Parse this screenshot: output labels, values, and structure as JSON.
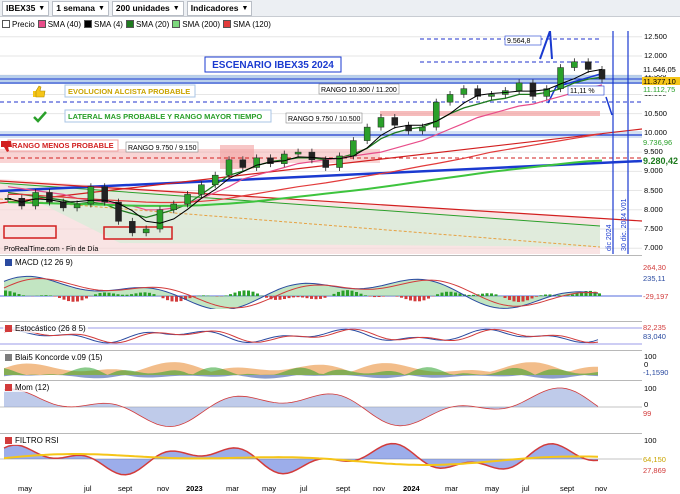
{
  "toolbar": {
    "symbol": "IBEX35",
    "period": "1 semana",
    "units": "200 unidades",
    "indicators": "Indicadores"
  },
  "legend": [
    {
      "label": "Precio",
      "color": "#ffffff"
    },
    {
      "label": "SMA (40)",
      "color": "#e84d8a"
    },
    {
      "label": "SMA (4)",
      "color": "#000000"
    },
    {
      "label": "SMA (20)",
      "color": "#1e7a1e"
    },
    {
      "label": "SMA (200)",
      "color": "#7dd87d"
    },
    {
      "label": "SMA (120)",
      "color": "#e23b3b"
    }
  ],
  "annotations": {
    "scenario_title": "ESCENARIO IBEX35 2024",
    "bull_scenario": "EVOLUCION ALCISTA PROBABLE",
    "lateral_scenario": "LATERAL MAS PROBABLE Y RANGO MAYOR TIEMPO",
    "less_probable": "RANGO MENOS PROBABLE",
    "range_high": "RANGO 10.300 / 11.200",
    "range_mid": "RANGO 9.750 / 10.500",
    "range_low": "RANGO 9.750 / 9.150",
    "fib_level": "9.564,8",
    "pct_move": "11,11 %",
    "credit": "ProRealTime.com - Fin de Día",
    "vline1": "dic 2024",
    "vline2": "30 dic. 2024 V01"
  },
  "price_axis": {
    "ticks": [
      "12.500",
      "12.000",
      "11.500",
      "11.000",
      "10.500",
      "10.000",
      "9.500",
      "9.000",
      "8.500",
      "8.000",
      "7.500",
      "7.000"
    ],
    "tags": [
      {
        "label": "11.646,05",
        "bg": "#ffffff",
        "fg": "#000000"
      },
      {
        "label": "11.377,10",
        "bg": "#f5c518",
        "fg": "#000000"
      },
      {
        "label": "11.112,75",
        "bg": "#ffffff",
        "fg": "#2aa02a"
      },
      {
        "label": "9.736,96",
        "bg": "#ffffff",
        "fg": "#2aa02a"
      },
      {
        "label": "9.280,42",
        "bg": "#ffffff",
        "fg": "#1e7a1e"
      }
    ]
  },
  "panels": [
    {
      "key": "macd",
      "title": "MACD (12 26 9)",
      "ticks": [],
      "tags": [
        {
          "label": "264,30",
          "color": "#d23b3b"
        },
        {
          "label": "235,11",
          "color": "#2a4aa0"
        },
        {
          "label": "-29,197",
          "color": "#d23b3b"
        }
      ]
    },
    {
      "key": "stoch",
      "title": "Estocástico (26 8 5)",
      "ticks": [],
      "tags": [
        {
          "label": "82,235",
          "color": "#d23b3b"
        },
        {
          "label": "83,040",
          "color": "#2a4aa0"
        }
      ]
    },
    {
      "key": "blai",
      "title": "Blai5 Koncorde v.09 (15)",
      "ticks": [
        "100",
        "0"
      ],
      "tags": [
        {
          "label": "-1,1590",
          "color": "#2a4aa0"
        }
      ]
    },
    {
      "key": "mom",
      "title": "Mom (12)",
      "ticks": [
        "100",
        "0"
      ],
      "tags": [
        {
          "label": "99",
          "color": "#d23b3b"
        }
      ]
    },
    {
      "key": "rsi",
      "title": "FILTRO RSI",
      "ticks": [
        "100"
      ],
      "tags": [
        {
          "label": "64,150",
          "color": "#c9a400"
        },
        {
          "label": "27,869",
          "color": "#d23b3b"
        }
      ]
    }
  ],
  "x_axis": [
    {
      "label": "may",
      "bold": false
    },
    {
      "label": "jul",
      "bold": false
    },
    {
      "label": "sept",
      "bold": false
    },
    {
      "label": "nov",
      "bold": false
    },
    {
      "label": "2023",
      "bold": true
    },
    {
      "label": "mar",
      "bold": false
    },
    {
      "label": "may",
      "bold": false
    },
    {
      "label": "jul",
      "bold": false
    },
    {
      "label": "sept",
      "bold": false
    },
    {
      "label": "nov",
      "bold": false
    },
    {
      "label": "2024",
      "bold": true
    },
    {
      "label": "mar",
      "bold": false
    },
    {
      "label": "may",
      "bold": false
    },
    {
      "label": "jul",
      "bold": false
    },
    {
      "label": "sept",
      "bold": false
    },
    {
      "label": "nov",
      "bold": false
    }
  ],
  "chart_data": {
    "type": "line",
    "title": "ESCENARIO IBEX35 2024",
    "xlabel": "",
    "ylabel": "",
    "ylim": [
      6850,
      12650
    ],
    "series": [
      {
        "name": "Precio",
        "values": [
          8300,
          8100,
          8450,
          8200,
          8050,
          8150,
          8600,
          8200,
          7700,
          7400,
          7500,
          8000,
          8150,
          8400,
          8650,
          8900,
          9300,
          9100,
          9350,
          9200,
          9450,
          9500,
          9300,
          9100,
          9400,
          9800,
          10150,
          10400,
          10200,
          10050,
          10150,
          10800,
          11000,
          11150,
          10950,
          11000,
          11100,
          11300,
          10950,
          11150,
          11700,
          11850,
          11650,
          11400
        ]
      },
      {
        "name": "SMA (20)",
        "values": [
          8450,
          8400,
          8350,
          8300,
          8250,
          8150,
          8200,
          8150,
          8000,
          7900,
          7800,
          7900,
          8000,
          8150,
          8400,
          8650,
          8900,
          9000,
          9150,
          9250,
          9300,
          9350,
          9350,
          9300,
          9350,
          9450,
          9600,
          9850,
          10000,
          10100,
          10150,
          10300,
          10500,
          10650,
          10750,
          10850,
          10900,
          11000,
          11000,
          11050,
          11150,
          11300,
          11400,
          11450
        ]
      },
      {
        "name": "SMA (40)",
        "values": [
          8600,
          8550,
          8500,
          8450,
          8400,
          8300,
          8250,
          8200,
          8150,
          8100,
          8000,
          8000,
          8050,
          8150,
          8300,
          8450,
          8600,
          8800,
          8900,
          9000,
          9100,
          9200,
          9250,
          9300,
          9350,
          9400,
          9450,
          9500,
          9600,
          9700,
          9800,
          9950,
          10100,
          10250,
          10400,
          10500,
          10600,
          10700,
          10750,
          10850,
          10950,
          11050,
          11150,
          11250
        ]
      },
      {
        "name": "SMA (120)",
        "values": [
          8400,
          8400,
          8380,
          8350,
          8330,
          8300,
          8280,
          8260,
          8240,
          8220,
          8200,
          8190,
          8190,
          8200,
          8220,
          8250,
          8300,
          8360,
          8420,
          8480,
          8540,
          8600,
          8650,
          8700,
          8760,
          8820,
          8880,
          8940,
          9000,
          9070,
          9140,
          9200,
          9270,
          9340,
          9420,
          9500,
          9560,
          9620,
          9680,
          9740,
          9800,
          9860,
          9920,
          9980
        ]
      },
      {
        "name": "SMA (200)",
        "values": [
          8200,
          8190,
          8180,
          8170,
          8160,
          8150,
          8140,
          8130,
          8120,
          8110,
          8100,
          8100,
          8100,
          8110,
          8120,
          8140,
          8160,
          8190,
          8220,
          8260,
          8300,
          8340,
          8380,
          8420,
          8460,
          8500,
          8540,
          8590,
          8640,
          8690,
          8740,
          8790,
          8840,
          8890,
          8940,
          8990,
          9030,
          9070,
          9110,
          9150,
          9190,
          9230,
          9260,
          9280
        ]
      }
    ]
  },
  "colors": {
    "range_band": "#a8c4e6",
    "annotation_blue": "#2233cc",
    "bull_text": "#c9a400",
    "lateral_text": "#2aa02a",
    "bear_text": "#d21f1f",
    "vline": "#1a3ad0"
  },
  "icons": [
    "thumbs-up-icon",
    "check-mark-icon",
    "thumbs-down-icon"
  ]
}
